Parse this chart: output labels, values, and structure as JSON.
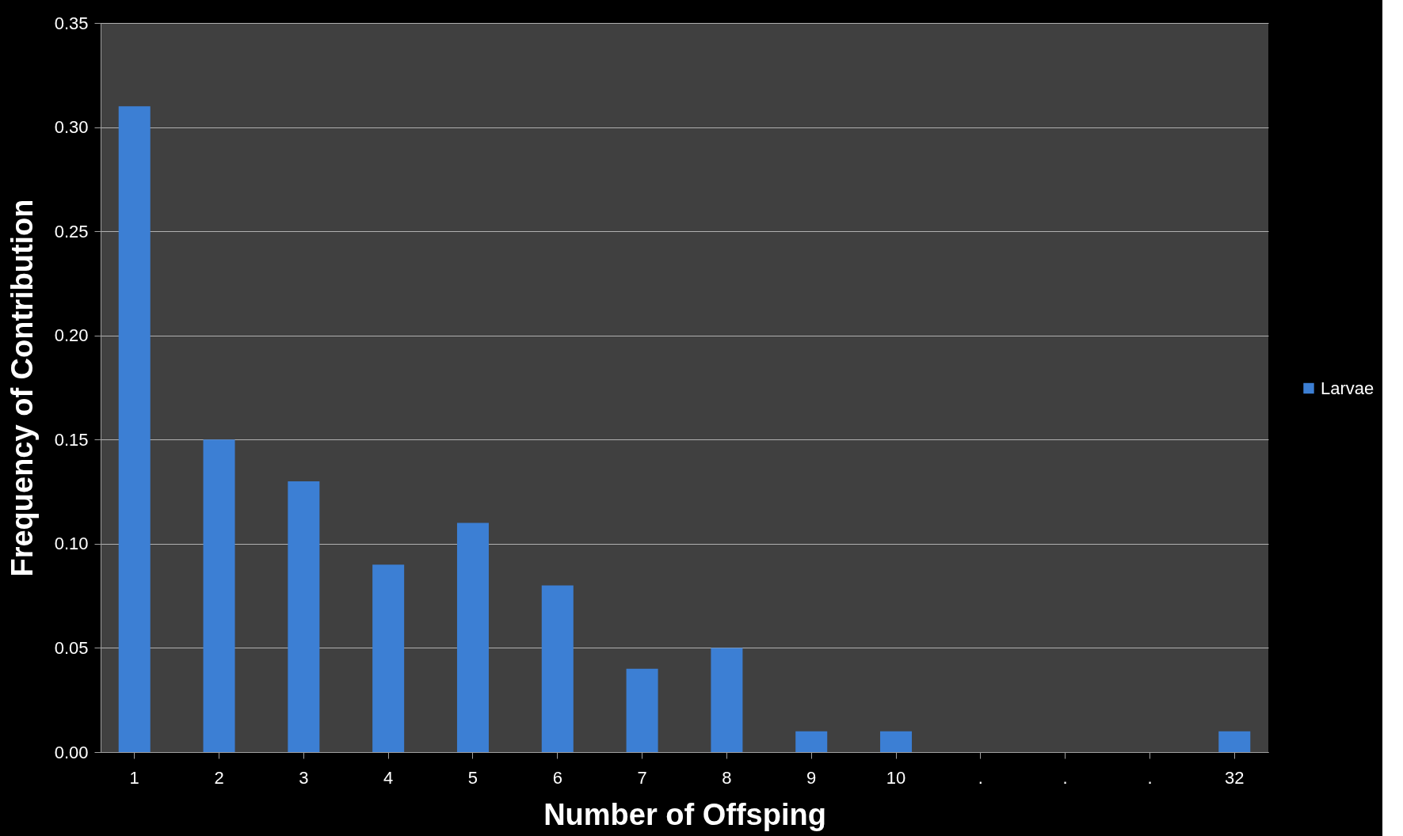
{
  "chart_data": {
    "type": "bar",
    "xlabel": "Number of Offsping",
    "ylabel": "Frequency of Contribution",
    "categories": [
      "1",
      "2",
      "3",
      "4",
      "5",
      "6",
      "7",
      "8",
      "9",
      "10",
      ".",
      ".",
      ".",
      "32"
    ],
    "series": [
      {
        "name": "Larvae",
        "color": "#3c7fd4",
        "values": [
          0.31,
          0.15,
          0.13,
          0.09,
          0.11,
          0.08,
          0.04,
          0.05,
          0.01,
          0.01,
          null,
          null,
          null,
          0.01
        ]
      }
    ],
    "ylim": [
      0,
      0.35
    ],
    "yticks": [
      {
        "value": 0,
        "label": "0.00"
      },
      {
        "value": 0.05,
        "label": "0.05"
      },
      {
        "value": 0.1,
        "label": "0.10"
      },
      {
        "value": 0.15,
        "label": "0.15"
      },
      {
        "value": 0.2,
        "label": "0.20"
      },
      {
        "value": 0.25,
        "label": "0.25"
      },
      {
        "value": 0.3,
        "label": "0.30"
      },
      {
        "value": 0.35,
        "label": "0.35"
      }
    ],
    "grid": "y",
    "legend": "right"
  }
}
